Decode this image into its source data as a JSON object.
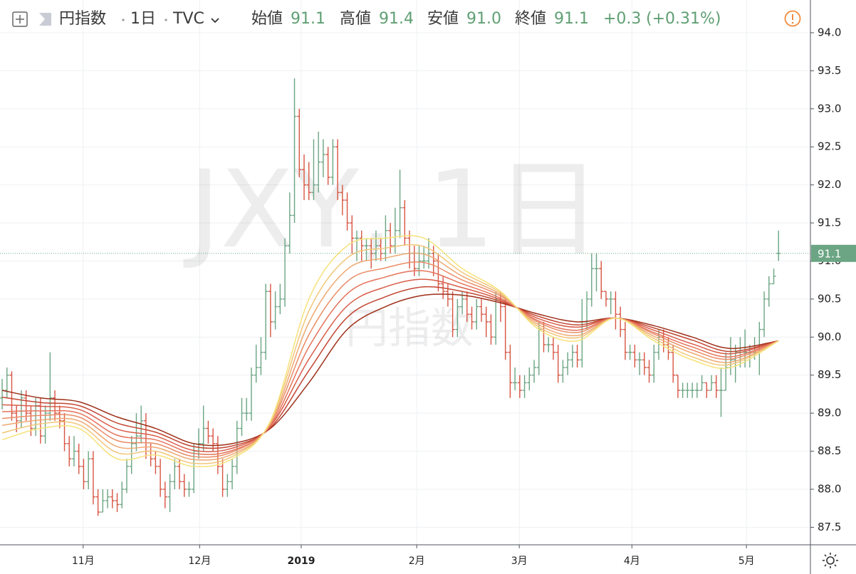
{
  "header": {
    "symbol_name": "円指数",
    "interval": "1日",
    "source": "TVC",
    "ohlc": [
      {
        "label": "始値",
        "value": "91.1"
      },
      {
        "label": "高値",
        "value": "91.4"
      },
      {
        "label": "安値",
        "value": "91.0"
      },
      {
        "label": "終値",
        "value": "91.1"
      }
    ],
    "change": "+0.3",
    "change_pct": "(+0.31%)"
  },
  "chart_data": {
    "type": "ohlc",
    "watermark": "JXY, 1日",
    "watermark_sub": "円指数",
    "up_color": "#6ba583",
    "down_color": "#d75442",
    "grid": true,
    "xlim": [
      -0.45,
      168.65
    ],
    "ylim": [
      87.27,
      94.43
    ],
    "xticks": [
      {
        "value": 16.9,
        "label": "11月"
      },
      {
        "value": 41.2,
        "label": "12月"
      },
      {
        "value": 62.4,
        "label": "2019",
        "bold": true
      },
      {
        "value": 86.5,
        "label": "2月"
      },
      {
        "value": 107.9,
        "label": "3月"
      },
      {
        "value": 131.4,
        "label": "4月"
      },
      {
        "value": 155.3,
        "label": "5月"
      }
    ],
    "yticks": [
      87.5,
      {
        "value": 88,
        "label": "88.0"
      },
      88.5,
      {
        "value": 89,
        "label": "89.0"
      },
      89.5,
      {
        "value": 90,
        "label": "90.0"
      },
      90.5,
      {
        "value": 91,
        "label": "91.0"
      },
      91.5,
      {
        "value": 92,
        "label": "92.0"
      },
      92.5,
      {
        "value": 93,
        "label": "93.0"
      },
      93.5,
      {
        "value": 94,
        "label": "94.0"
      }
    ],
    "last_price": {
      "value": 91.1,
      "label": "91.1",
      "color": "#6ba583"
    },
    "open": [
      89.2,
      89.3,
      89.5,
      89.0,
      88.9,
      89.2,
      89.0,
      88.8,
      89.1,
      88.7,
      89.0,
      89.2,
      89.0,
      88.9,
      88.6,
      88.4,
      88.5,
      88.3,
      88.1,
      88.4,
      87.9,
      87.7,
      87.85,
      87.9,
      87.85,
      87.8,
      88.0,
      88.3,
      88.6,
      88.7,
      88.9,
      88.5,
      88.4,
      88.3,
      88.0,
      87.9,
      88.1,
      88.3,
      88.1,
      88.0,
      88.0,
      88.5,
      88.6,
      88.8,
      88.7,
      88.6,
      88.3,
      88.0,
      88.1,
      88.3,
      88.8,
      89.0,
      89.0,
      89.5,
      89.6,
      89.8,
      90.6,
      90.2,
      90.4,
      90.5,
      91.2,
      91.6,
      92.9,
      92.2,
      92.0,
      91.9,
      92.0,
      92.3,
      92.4,
      92.1,
      92.5,
      91.9,
      91.8,
      91.5,
      91.3,
      91.3,
      91.2,
      91.2,
      91.1,
      91.2,
      91.1,
      91.4,
      91.2,
      91.4,
      91.7,
      91.3,
      91.1,
      90.9,
      91.0,
      91.0,
      91.1,
      91.0,
      90.7,
      90.6,
      90.5,
      90.1,
      90.4,
      90.5,
      90.3,
      90.2,
      90.4,
      90.3,
      90.2,
      90.0,
      90.5,
      90.4,
      89.8,
      89.4,
      89.4,
      89.3,
      89.4,
      89.5,
      89.6,
      90.1,
      89.9,
      89.9,
      89.8,
      89.5,
      89.6,
      89.7,
      89.8,
      89.7,
      90.2,
      90.5,
      90.9,
      90.9,
      90.6,
      90.5,
      90.5,
      90.3,
      90.1,
      89.8,
      89.8,
      89.7,
      89.7,
      89.6,
      89.5,
      89.8,
      90.0,
      89.9,
      89.8,
      89.5,
      89.3,
      89.3,
      89.3,
      89.3,
      89.3,
      89.4,
      89.3,
      89.4,
      89.3,
      89.3,
      89.6,
      89.7,
      89.8,
      89.8,
      89.8,
      89.8,
      89.8,
      90.1,
      90.5,
      90.7,
      91.1
    ],
    "high": [
      89.45,
      89.6,
      89.55,
      89.1,
      89.3,
      89.3,
      89.1,
      89.2,
      89.2,
      89.1,
      89.8,
      89.3,
      89.1,
      89.0,
      88.7,
      88.7,
      88.6,
      88.4,
      88.5,
      88.5,
      88.0,
      88.0,
      88.0,
      88.0,
      87.95,
      88.1,
      88.4,
      88.7,
      89.0,
      89.1,
      89.0,
      88.6,
      88.5,
      88.4,
      88.1,
      88.2,
      88.4,
      88.4,
      88.2,
      88.1,
      88.6,
      88.8,
      89.1,
      88.9,
      88.8,
      88.7,
      88.4,
      88.2,
      88.4,
      88.9,
      89.2,
      89.2,
      89.6,
      89.9,
      90.0,
      90.7,
      90.7,
      90.6,
      90.7,
      91.3,
      91.9,
      93.4,
      93.0,
      92.4,
      92.3,
      92.6,
      92.7,
      92.6,
      92.5,
      92.6,
      92.6,
      92.0,
      91.9,
      91.6,
      91.4,
      91.4,
      91.3,
      91.3,
      91.4,
      91.3,
      91.6,
      91.5,
      91.7,
      92.2,
      91.8,
      91.4,
      91.2,
      91.2,
      91.2,
      91.3,
      91.2,
      91.1,
      90.8,
      90.7,
      90.6,
      90.5,
      90.6,
      90.6,
      90.4,
      90.5,
      90.5,
      90.4,
      90.3,
      90.6,
      90.6,
      90.5,
      89.9,
      89.6,
      89.5,
      89.5,
      89.6,
      89.7,
      90.2,
      90.2,
      90.0,
      90.0,
      89.9,
      89.7,
      89.8,
      89.9,
      89.9,
      90.5,
      90.6,
      91.1,
      91.1,
      91.0,
      90.6,
      90.6,
      90.6,
      90.4,
      90.2,
      89.9,
      89.9,
      89.8,
      89.8,
      89.7,
      89.9,
      90.1,
      90.1,
      90.0,
      89.9,
      89.5,
      89.4,
      89.4,
      89.4,
      89.4,
      89.5,
      89.4,
      89.5,
      89.5,
      89.6,
      89.8,
      90.0,
      89.9,
      90.0,
      90.1,
      89.9,
      90.0,
      90.2,
      90.6,
      90.8,
      90.9,
      91.4
    ],
    "low": [
      89.05,
      89.2,
      88.9,
      88.75,
      88.8,
      88.9,
      88.7,
      88.7,
      88.6,
      88.6,
      88.9,
      88.9,
      88.8,
      88.5,
      88.3,
      88.3,
      88.2,
      88.0,
      88.0,
      87.8,
      87.65,
      87.7,
      87.75,
      87.75,
      87.7,
      87.75,
      87.95,
      88.2,
      88.5,
      88.6,
      88.4,
      88.3,
      88.2,
      87.9,
      87.75,
      87.7,
      88.0,
      88.0,
      87.9,
      87.9,
      87.95,
      88.4,
      88.5,
      88.6,
      88.5,
      88.2,
      87.9,
      87.9,
      88.0,
      88.2,
      88.7,
      88.9,
      88.9,
      89.4,
      89.5,
      89.7,
      90.0,
      90.1,
      90.3,
      90.4,
      91.1,
      91.5,
      92.1,
      91.8,
      91.8,
      91.8,
      91.9,
      92.1,
      92.0,
      92.0,
      91.8,
      91.6,
      91.4,
      91.1,
      91.0,
      91.0,
      91.0,
      90.9,
      91.0,
      91.0,
      91.0,
      91.1,
      91.1,
      91.3,
      91.2,
      90.9,
      90.8,
      90.8,
      90.9,
      90.9,
      90.8,
      90.6,
      90.5,
      90.4,
      90.0,
      90.0,
      90.3,
      90.2,
      90.1,
      90.1,
      90.2,
      90.0,
      89.9,
      89.9,
      90.2,
      89.7,
      89.2,
      89.3,
      89.2,
      89.2,
      89.3,
      89.4,
      89.5,
      89.8,
      89.8,
      89.7,
      89.4,
      89.4,
      89.5,
      89.6,
      89.6,
      89.6,
      90.1,
      90.4,
      90.6,
      90.5,
      90.4,
      90.3,
      90.1,
      90.0,
      89.7,
      89.7,
      89.6,
      89.5,
      89.5,
      89.4,
      89.4,
      89.7,
      89.8,
      89.7,
      89.4,
      89.2,
      89.2,
      89.2,
      89.2,
      89.2,
      89.3,
      89.2,
      89.3,
      89.2,
      88.95,
      89.3,
      89.5,
      89.4,
      89.6,
      89.6,
      89.6,
      89.7,
      89.5,
      90.0,
      90.4,
      90.7,
      91.0
    ],
    "close": [
      89.3,
      89.5,
      89.0,
      88.9,
      89.2,
      89.0,
      88.8,
      89.1,
      88.7,
      89.0,
      89.2,
      89.0,
      88.9,
      88.6,
      88.4,
      88.5,
      88.3,
      88.1,
      88.4,
      87.9,
      87.7,
      87.85,
      87.9,
      87.85,
      87.8,
      88.0,
      88.3,
      88.6,
      88.7,
      88.9,
      88.5,
      88.4,
      88.3,
      88.0,
      87.9,
      88.1,
      88.3,
      88.1,
      88.0,
      88.0,
      88.5,
      88.6,
      88.8,
      88.7,
      88.6,
      88.3,
      88.0,
      88.1,
      88.3,
      88.8,
      89.0,
      89.0,
      89.5,
      89.6,
      89.8,
      90.6,
      90.2,
      90.4,
      90.5,
      91.2,
      91.6,
      92.9,
      92.2,
      92.0,
      91.9,
      92.0,
      92.3,
      92.4,
      92.1,
      92.5,
      91.9,
      91.8,
      91.5,
      91.3,
      91.3,
      91.2,
      91.2,
      91.1,
      91.2,
      91.1,
      91.4,
      91.2,
      91.4,
      91.7,
      91.3,
      91.1,
      90.9,
      91.0,
      91.0,
      91.1,
      91.0,
      90.7,
      90.6,
      90.5,
      90.1,
      90.4,
      90.5,
      90.3,
      90.2,
      90.4,
      90.3,
      90.2,
      90.0,
      90.5,
      90.4,
      89.8,
      89.4,
      89.4,
      89.3,
      89.4,
      89.5,
      89.6,
      90.1,
      89.9,
      89.9,
      89.8,
      89.5,
      89.6,
      89.7,
      89.8,
      89.7,
      90.2,
      90.5,
      90.9,
      90.9,
      90.6,
      90.5,
      90.5,
      90.3,
      90.1,
      89.8,
      89.8,
      89.7,
      89.7,
      89.6,
      89.5,
      89.8,
      90.0,
      89.9,
      89.8,
      89.5,
      89.3,
      89.3,
      89.3,
      89.3,
      89.3,
      89.4,
      89.3,
      89.4,
      89.3,
      89.3,
      89.6,
      89.7,
      89.8,
      89.8,
      89.8,
      89.8,
      89.8,
      90.1,
      90.5,
      90.7,
      90.8,
      91.1
    ],
    "ma_x": [
      0,
      8,
      16,
      24,
      32,
      40,
      48,
      56,
      64,
      72,
      80,
      88,
      96,
      104,
      112,
      120,
      128,
      136,
      144,
      152,
      162
    ],
    "series": [
      {
        "color": "#9e2f18",
        "values": [
          89.3,
          89.2,
          89.15,
          88.95,
          88.8,
          88.6,
          88.6,
          88.8,
          89.4,
          90.1,
          90.4,
          90.55,
          90.55,
          90.45,
          90.3,
          90.2,
          90.25,
          90.15,
          90.0,
          89.85,
          89.95
        ]
      },
      {
        "color": "#c24632",
        "values": [
          89.21,
          89.14,
          89.1,
          88.87,
          88.75,
          88.56,
          88.57,
          88.81,
          89.56,
          90.26,
          90.53,
          90.66,
          90.6,
          90.47,
          90.27,
          90.16,
          90.25,
          90.12,
          89.96,
          89.81,
          89.95
        ]
      },
      {
        "color": "#d95c48",
        "values": [
          89.11,
          89.09,
          89.05,
          88.79,
          88.7,
          88.51,
          88.54,
          88.83,
          89.71,
          90.41,
          90.66,
          90.76,
          90.65,
          90.49,
          90.24,
          90.13,
          90.25,
          90.09,
          89.91,
          89.78,
          89.95
        ]
      },
      {
        "color": "#e5735a",
        "values": [
          89.02,
          89.03,
          89.0,
          88.71,
          88.65,
          88.47,
          88.51,
          88.84,
          89.87,
          90.57,
          90.79,
          90.87,
          90.7,
          90.51,
          90.21,
          90.09,
          90.25,
          90.06,
          89.87,
          89.74,
          89.95
        ]
      },
      {
        "color": "#ea8c66",
        "values": [
          88.93,
          88.97,
          88.95,
          88.64,
          88.6,
          88.43,
          88.49,
          88.86,
          90.03,
          90.73,
          90.91,
          90.98,
          90.75,
          90.54,
          90.19,
          90.06,
          90.25,
          90.04,
          89.83,
          89.71,
          89.95
        ]
      },
      {
        "color": "#eea870",
        "values": [
          88.84,
          88.91,
          88.9,
          88.56,
          88.55,
          88.39,
          88.46,
          88.87,
          90.19,
          90.89,
          91.04,
          91.09,
          90.8,
          90.56,
          90.16,
          90.02,
          90.25,
          90.01,
          89.79,
          89.67,
          89.95
        ]
      },
      {
        "color": "#f2c677",
        "values": [
          88.74,
          88.86,
          88.85,
          88.48,
          88.5,
          88.34,
          88.43,
          88.89,
          90.34,
          91.04,
          91.17,
          91.19,
          90.85,
          90.58,
          90.13,
          89.99,
          90.25,
          89.98,
          89.74,
          89.64,
          89.95
        ]
      },
      {
        "color": "#f6e27a",
        "values": [
          88.65,
          88.8,
          88.8,
          88.4,
          88.45,
          88.3,
          88.4,
          88.9,
          90.5,
          91.2,
          91.3,
          91.3,
          90.9,
          90.6,
          90.1,
          89.95,
          90.25,
          89.95,
          89.7,
          89.6,
          89.95
        ]
      }
    ]
  }
}
